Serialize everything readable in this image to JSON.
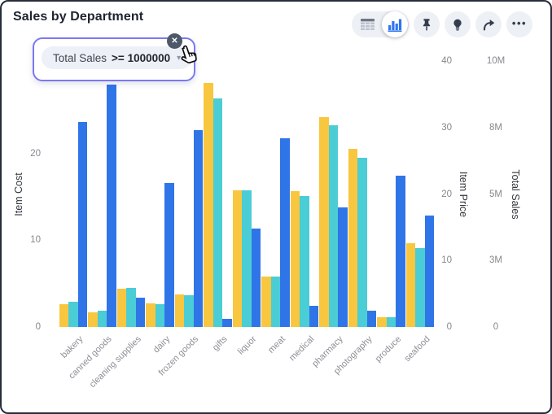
{
  "header": {
    "title": "Sales by Department"
  },
  "filter_chip": {
    "field": "Total Sales",
    "condition": ">= 1000000",
    "caret_glyph": "▾",
    "close_glyph": "✕"
  },
  "toolbar": {
    "more_glyph": "•••",
    "icons": {
      "table": "table-grid",
      "chart": "bar-chart",
      "pin": "push-pin",
      "insights": "lightbulb",
      "share": "share-arrow",
      "more": "ellipsis"
    },
    "selected_view": "chart"
  },
  "colors": {
    "item_cost": "#F9C63F",
    "item_price": "#4BCDD6",
    "total_sales": "#2F75E8",
    "chip_border": "#7B78F3",
    "icon_dark": "#333D4D",
    "icon_blue": "#2E75F0"
  },
  "chart_data": {
    "type": "bar",
    "title": "Sales by Department",
    "grid": false,
    "legend": "none",
    "categories": [
      "bakery",
      "canned goods",
      "cleaning supplies",
      "dairy",
      "frozen goods",
      "gifts",
      "liquor",
      "meat",
      "medical",
      "pharmacy",
      "photography",
      "produce",
      "seafood"
    ],
    "series": [
      {
        "name": "Item Cost",
        "axis": "left",
        "color": "#F9C63F",
        "values": [
          2.6,
          1.7,
          4.4,
          2.7,
          3.8,
          28.2,
          15.8,
          5.8,
          15.7,
          24.2,
          20.6,
          1.1,
          9.7
        ]
      },
      {
        "name": "Item Price",
        "axis": "right",
        "color": "#4BCDD6",
        "values": [
          3.8,
          2.4,
          5.9,
          3.4,
          4.8,
          34.4,
          20.5,
          7.6,
          19.7,
          30.3,
          25.4,
          1.5,
          11.9
        ]
      },
      {
        "name": "Total Sales",
        "axis": "far_right",
        "color": "#2F75E8",
        "values": [
          7700000,
          9100000,
          1100000,
          5400000,
          7400000,
          300000,
          3700000,
          7100000,
          800000,
          4500000,
          600000,
          5700000,
          4200000
        ]
      }
    ],
    "axes": {
      "left": {
        "label": "Item Cost",
        "max": 30.7,
        "ticks": [
          0,
          10,
          20
        ]
      },
      "right": {
        "label": "Item Price",
        "max": 40,
        "ticks": [
          0,
          10,
          20,
          30,
          40
        ]
      },
      "far_right": {
        "label": "Total Sales",
        "max": 10000000,
        "tick_values": [
          0,
          2500000,
          5000000,
          7500000,
          10000000
        ],
        "tick_labels": [
          "0",
          "3M",
          "5M",
          "8M",
          "10M"
        ]
      }
    }
  }
}
